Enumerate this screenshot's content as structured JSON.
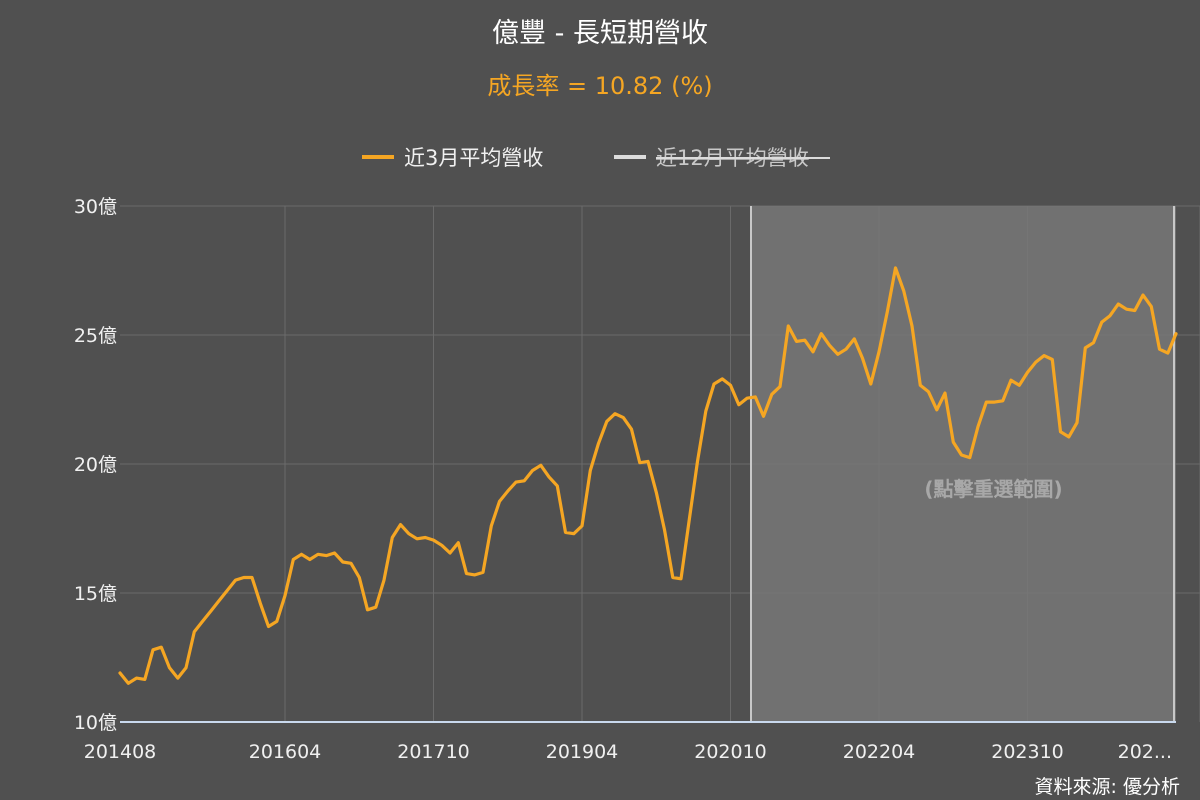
{
  "colors": {
    "background": "#505050",
    "title": "#ffffff",
    "subtitle": "#f5a623",
    "series_3m": "#f5a623",
    "series_12m": "#dcdcdc",
    "grid": "#6a6a6a",
    "selection": "#777777",
    "axis_text": "#f0f0f0"
  },
  "chart_data": {
    "type": "line",
    "title": "億豐 - 長短期營收",
    "subtitle": "成長率 = 10.82 (%)",
    "legend_position": "top-center",
    "grid": true,
    "series": [
      {
        "name": "近3月平均營收",
        "visible": true,
        "values": [
          11.9,
          11.5,
          11.7,
          11.65,
          12.8,
          12.9,
          12.1,
          11.7,
          12.1,
          13.5,
          13.9,
          14.3,
          14.7,
          15.1,
          15.5,
          15.6,
          15.6,
          14.6,
          13.7,
          13.9,
          14.9,
          16.3,
          16.5,
          16.3,
          16.5,
          16.45,
          16.55,
          16.2,
          16.15,
          15.6,
          14.35,
          14.45,
          15.5,
          17.15,
          17.65,
          17.3,
          17.1,
          17.15,
          17.05,
          16.85,
          16.55,
          16.95,
          15.75,
          15.7,
          15.8,
          17.6,
          18.55,
          18.95,
          19.3,
          19.35,
          19.75,
          19.95,
          19.5,
          19.15,
          17.35,
          17.3,
          17.6,
          19.75,
          20.8,
          21.65,
          21.95,
          21.8,
          21.35,
          20.05,
          20.1,
          18.9,
          17.45,
          15.6,
          15.55,
          17.85,
          20.1,
          22.05,
          23.1,
          23.3,
          23.05,
          22.3,
          22.55,
          22.6,
          21.85,
          22.7,
          23.0,
          25.35,
          24.75,
          24.8,
          24.35,
          25.05,
          24.6,
          24.25,
          24.45,
          24.85,
          24.1,
          23.1,
          24.35,
          25.9,
          27.6,
          26.7,
          25.35,
          23.05,
          22.8,
          22.1,
          22.75,
          20.85,
          20.35,
          20.25,
          21.45,
          22.4,
          22.4,
          22.45,
          23.25,
          23.05,
          23.55,
          23.95,
          24.2,
          24.05,
          21.25,
          21.05,
          21.6,
          24.5,
          24.7,
          25.5,
          25.75,
          26.2,
          26.0,
          25.95,
          26.55,
          26.1,
          24.45,
          24.3,
          25.05
        ]
      },
      {
        "name": "近12月平均營收",
        "visible": false,
        "values": []
      }
    ],
    "x_start": "201408",
    "x_tick_labels": [
      "201408",
      "201604",
      "201710",
      "201904",
      "202010",
      "202204",
      "202310",
      "202..."
    ],
    "y_tick_labels": [
      "10億",
      "15億",
      "20億",
      "25億",
      "30億"
    ],
    "ylim": [
      10,
      30
    ],
    "y_unit": "億",
    "selection": {
      "from": "202012",
      "to_end": true,
      "hint": "(點擊重選範圍)"
    }
  },
  "footer": {
    "source": "資料來源: 優分析"
  }
}
